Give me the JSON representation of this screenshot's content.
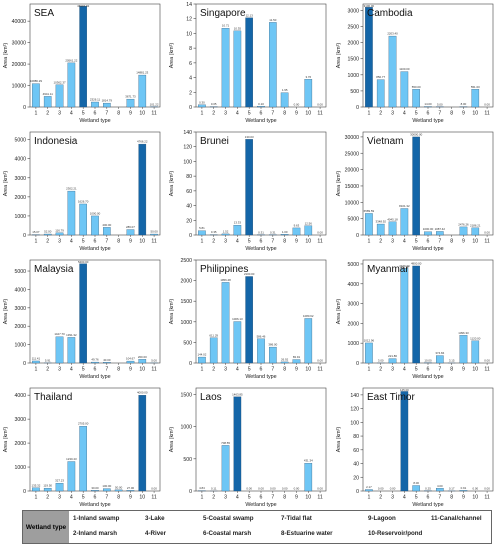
{
  "chart_data": [
    {
      "type": "bar",
      "title": "SEA",
      "xlabel": "Wetland type",
      "ylabel": "Area (km²)",
      "categories": [
        "1",
        "2",
        "3",
        "4",
        "5",
        "6",
        "7",
        "8",
        "9",
        "10",
        "11"
      ],
      "values": [
        10886.29,
        4941.11,
        10362.37,
        20561.22,
        46997.92,
        2326.11,
        1814.79,
        0,
        3671.73,
        14881.23,
        101.22
      ],
      "value_labels": [
        "10886.29",
        "4941.11",
        "10362.37",
        "20561.22",
        "46997.92",
        "2326.11",
        "1814.79",
        "",
        "3671.73",
        "14881.23",
        "101.22"
      ],
      "yticks": [
        0,
        10000,
        20000,
        30000,
        40000
      ],
      "ytick_labels": [
        "0",
        "10000",
        "20000",
        "30000",
        "40000"
      ],
      "ylim": [
        0,
        48000
      ],
      "highlight_index": 4
    },
    {
      "type": "bar",
      "title": "Singapore",
      "xlabel": "Wetland type",
      "ylabel": "Area (km²)",
      "categories": [
        "1",
        "2",
        "3",
        "4",
        "5",
        "6",
        "7",
        "8",
        "9",
        "10",
        "11"
      ],
      "values": [
        0.3,
        0.05,
        10.71,
        10.35,
        12.13,
        0.1,
        11.5,
        1.95,
        0,
        3.76,
        0
      ],
      "value_labels": [
        "0.30",
        "0.05",
        "10.71",
        "10.35",
        "12.13",
        "0.10",
        "11.50",
        "1.95",
        "0.00",
        "3.76",
        "0.00"
      ],
      "yticks": [
        0,
        2,
        4,
        6,
        8,
        10,
        12,
        14
      ],
      "ytick_labels": [
        "0",
        "2",
        "4",
        "6",
        "8",
        "10",
        "12",
        "14"
      ],
      "ylim": [
        0,
        14
      ],
      "highlight_index": 4
    },
    {
      "type": "bar",
      "title": "Cambodia",
      "xlabel": "Wetland type",
      "ylabel": "Area (km²)",
      "categories": [
        "1",
        "2",
        "3",
        "4",
        "5",
        "6",
        "7",
        "8",
        "9",
        "10",
        "11"
      ],
      "values": [
        3100.0,
        850.77,
        2203.4,
        1100.0,
        550.0,
        14.0,
        5.0,
        0,
        8.0,
        551.0,
        0
      ],
      "value_labels": [
        "3100.00",
        "850.77",
        "2203.40",
        "1100.00",
        "550.00",
        "14.00",
        "5.00",
        "",
        "8.00",
        "551.00",
        "0.00"
      ],
      "yticks": [
        0,
        500,
        1000,
        1500,
        2000,
        2500,
        3000
      ],
      "ytick_labels": [
        "0",
        "500",
        "1000",
        "1500",
        "2000",
        "2500",
        "3000"
      ],
      "ylim": [
        0,
        3200
      ],
      "highlight_index": 0
    },
    {
      "type": "bar",
      "title": "Indonesia",
      "xlabel": "Wetland type",
      "ylabel": "Area (km²)",
      "categories": [
        "1",
        "2",
        "3",
        "4",
        "5",
        "6",
        "7",
        "8",
        "9",
        "10",
        "11"
      ],
      "values": [
        15.07,
        52.0,
        116.79,
        2302.21,
        1626.7,
        1000.0,
        400.0,
        0,
        286.07,
        4766.22,
        50.0
      ],
      "value_labels": [
        "15.07",
        "52.00",
        "116.79",
        "2302.21",
        "1626.70",
        "1000.00",
        "400.00",
        "",
        "286.07",
        "4766.22",
        "50.00"
      ],
      "yticks": [
        0,
        1000,
        2000,
        3000,
        4000,
        5000
      ],
      "ytick_labels": [
        "0",
        "1000",
        "2000",
        "3000",
        "4000",
        "5000"
      ],
      "ylim": [
        0,
        5400
      ],
      "highlight_index": 9
    },
    {
      "type": "bar",
      "title": "Brunei",
      "xlabel": "Wetland type",
      "ylabel": "Area (km²)",
      "categories": [
        "1",
        "2",
        "3",
        "4",
        "5",
        "6",
        "7",
        "8",
        "9",
        "10",
        "11"
      ],
      "values": [
        5.81,
        0.35,
        1.52,
        13.33,
        130.03,
        0.31,
        0.31,
        1.0,
        9.63,
        12.56,
        0
      ],
      "value_labels": [
        "5.81",
        "0.35",
        "1.52",
        "13.33",
        "130.03",
        "0.31",
        "0.31",
        "1.00",
        "9.63",
        "12.56",
        "0.00"
      ],
      "yticks": [
        0,
        20,
        40,
        60,
        80,
        100,
        120,
        140
      ],
      "ytick_labels": [
        "0",
        "20",
        "40",
        "60",
        "80",
        "100",
        "120",
        "140"
      ],
      "ylim": [
        0,
        140
      ],
      "highlight_index": 4
    },
    {
      "type": "bar",
      "title": "Vietnam",
      "xlabel": "Wetland type",
      "ylabel": "Area (km²)",
      "categories": [
        "1",
        "2",
        "3",
        "4",
        "5",
        "6",
        "7",
        "8",
        "9",
        "10",
        "11"
      ],
      "values": [
        6589.59,
        3348.92,
        4045.18,
        8101.32,
        30000.0,
        1000.0,
        1087.42,
        0,
        2476.26,
        2186.21,
        0
      ],
      "value_labels": [
        "6589.59",
        "3348.92",
        "4045.18",
        "8101.32",
        "30000.00",
        "1000.00",
        "1087.42",
        "",
        "2476.26",
        "2186.21",
        "0.00"
      ],
      "yticks": [
        0,
        5000,
        10000,
        15000,
        20000,
        25000,
        30000
      ],
      "ytick_labels": [
        "0",
        "5000",
        "10000",
        "15000",
        "20000",
        "25000",
        "30000"
      ],
      "ylim": [
        0,
        31500
      ],
      "highlight_index": 4
    },
    {
      "type": "bar",
      "title": "Malaysia",
      "xlabel": "Wetland type",
      "ylabel": "Area (km²)",
      "categories": [
        "1",
        "2",
        "3",
        "4",
        "5",
        "6",
        "7",
        "8",
        "9",
        "10",
        "11"
      ],
      "values": [
        111.41,
        5.91,
        1427.7,
        1391.32,
        5400.0,
        49.76,
        40.0,
        0,
        104.67,
        200.0,
        5.0
      ],
      "value_labels": [
        "111.41",
        "5.91",
        "1427.70",
        "1391.32",
        "5400.00",
        "49.76",
        "40.00",
        "",
        "104.67",
        "200.00",
        "5.00"
      ],
      "yticks": [
        0,
        1000,
        2000,
        3000,
        4000,
        5000
      ],
      "ytick_labels": [
        "0",
        "1000",
        "2000",
        "3000",
        "4000",
        "5000"
      ],
      "ylim": [
        0,
        5600
      ],
      "highlight_index": 4
    },
    {
      "type": "bar",
      "title": "Philippines",
      "xlabel": "Wetland type",
      "ylabel": "Area (km²)",
      "categories": [
        "1",
        "2",
        "3",
        "4",
        "5",
        "6",
        "7",
        "8",
        "9",
        "10",
        "11"
      ],
      "values": [
        144.02,
        611.29,
        1956.48,
        1006.13,
        2100.0,
        586.46,
        386.0,
        26.92,
        83.91,
        1080.62,
        0
      ],
      "value_labels": [
        "144.02",
        "611.29",
        "1956.48",
        "1006.13",
        "2100.00",
        "586.46",
        "386.00",
        "26.92",
        "83.91",
        "1080.62",
        "0.00"
      ],
      "yticks": [
        0,
        500,
        1000,
        1500,
        2000,
        2500
      ],
      "ytick_labels": [
        "0",
        "500",
        "1000",
        "1500",
        "2000",
        "2500"
      ],
      "ylim": [
        0,
        2500
      ],
      "highlight_index": 4
    },
    {
      "type": "bar",
      "title": "Myanmar",
      "xlabel": "Wetland type",
      "ylabel": "Area (km²)",
      "categories": [
        "1",
        "2",
        "3",
        "4",
        "5",
        "6",
        "7",
        "8",
        "9",
        "10",
        "11"
      ],
      "values": [
        1012.96,
        3.0,
        221.86,
        4779.3,
        4900.0,
        10.0,
        374.84,
        3.15,
        1396.33,
        1120.0,
        0
      ],
      "value_labels": [
        "1012.96",
        "3.00",
        "221.86",
        "4779.30",
        "4900.00",
        "10.00",
        "374.84",
        "3.15",
        "1396.33",
        "1120.00",
        "0.00"
      ],
      "yticks": [
        0,
        1000,
        2000,
        3000,
        4000,
        5000
      ],
      "ytick_labels": [
        "0",
        "1000",
        "2000",
        "3000",
        "4000",
        "5000"
      ],
      "ylim": [
        0,
        5200
      ],
      "highlight_index": 4
    },
    {
      "type": "bar",
      "title": "Thailand",
      "xlabel": "Wetland type",
      "ylabel": "Area (km²)",
      "categories": [
        "1",
        "2",
        "3",
        "4",
        "5",
        "6",
        "7",
        "8",
        "9",
        "10",
        "11"
      ],
      "values": [
        135.32,
        119.5,
        327.23,
        1230.43,
        2705.0,
        30.0,
        100.0,
        50.0,
        27.0,
        4000.0,
        0
      ],
      "value_labels": [
        "135.32",
        "119.50",
        "327.23",
        "1230.43",
        "2705.00",
        "30.00",
        "100.00",
        "50.00",
        "27.00",
        "4000.00",
        "0.00"
      ],
      "yticks": [
        0,
        1000,
        2000,
        3000,
        4000
      ],
      "ytick_labels": [
        "0",
        "1000",
        "2000",
        "3000",
        "4000"
      ],
      "ylim": [
        0,
        4300
      ],
      "highlight_index": 9
    },
    {
      "type": "bar",
      "title": "Laos",
      "xlabel": "Wetland type",
      "ylabel": "Area (km²)",
      "categories": [
        "1",
        "2",
        "3",
        "4",
        "5",
        "6",
        "7",
        "8",
        "9",
        "10",
        "11"
      ],
      "values": [
        4.84,
        0.11,
        708.55,
        1463.85,
        0,
        0,
        0,
        0,
        0,
        431.34,
        0
      ],
      "value_labels": [
        "4.84",
        "0.11",
        "708.55",
        "1463.85",
        "0.00",
        "0.00",
        "0.00",
        "0.00",
        "0.00",
        "431.34",
        "0.00"
      ],
      "yticks": [
        0,
        500,
        1000,
        1500
      ],
      "ytick_labels": [
        "0",
        "500",
        "1000",
        "1500"
      ],
      "ylim": [
        0,
        1600
      ],
      "highlight_index": 3
    },
    {
      "type": "bar",
      "title": "East Timor",
      "xlabel": "Wetland type",
      "ylabel": "Area (km²)",
      "categories": [
        "1",
        "2",
        "3",
        "4",
        "5",
        "6",
        "7",
        "8",
        "9",
        "10",
        "11"
      ],
      "values": [
        2.17,
        0.0,
        0.0,
        145.0,
        8.0,
        0.25,
        4.0,
        0.17,
        0.91,
        0.0,
        0
      ],
      "value_labels": [
        "2.17",
        "0.00",
        "0.00",
        "145.00",
        "8.00",
        "0.25",
        "4.00",
        "0.17",
        "0.91",
        "0.00",
        "0.00"
      ],
      "yticks": [
        0,
        20,
        40,
        60,
        80,
        100,
        120,
        140
      ],
      "ytick_labels": [
        "0",
        "20",
        "40",
        "60",
        "80",
        "100",
        "120",
        "140"
      ],
      "ylim": [
        0,
        150
      ],
      "highlight_index": 3
    }
  ],
  "legend": {
    "title": "Wetland type",
    "items": [
      "1-Inland swamp",
      "2-Inland marsh",
      "3-Lake",
      "4-River",
      "5-Coastal swamp",
      "6-Coastal marsh",
      "7-Tidal flat",
      "8-Estuarine water",
      "9-Lagoon",
      "10-Reservoir/pond",
      "11-Canal/channel"
    ]
  },
  "colors": {
    "bar": "#6ec6f5",
    "highlight": "#1466a8",
    "axis": "#333333"
  }
}
